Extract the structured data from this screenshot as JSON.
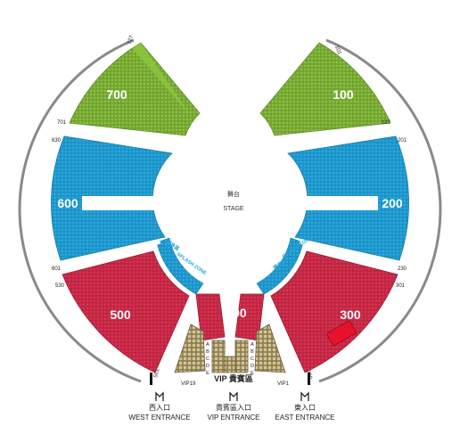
{
  "stage": {
    "zh": "舞台",
    "en": "STAGE"
  },
  "colors": {
    "green": "#7cae3a",
    "green_light": "#8dc63f",
    "blue": "#1e9fd6",
    "red": "#d42b49",
    "tan": "#c8b88a",
    "tan_dark": "#7a6a44",
    "arc": "#8a8a8a"
  },
  "sections": {
    "s700": "700",
    "s100": "100",
    "s600": "600",
    "s200": "200",
    "s500": "500",
    "s300": "300",
    "s400": "400"
  },
  "seat_numbers": {
    "n727": "727",
    "n101": "101",
    "n701": "701",
    "n127": "127",
    "n630": "630",
    "n201": "201",
    "n601": "601",
    "n230": "230",
    "n530": "530",
    "n301": "301",
    "n501": "501",
    "n330": "330"
  },
  "splash_zone": {
    "zh": "濺身區",
    "en": "SPLASH ZONE"
  },
  "vip": {
    "label": "VIP 貴賓區",
    "left": "VIP19",
    "right": "VIP1",
    "rows": [
      "A",
      "B",
      "C",
      "D",
      "E"
    ]
  },
  "entrances": {
    "west_zh": "西入口",
    "west_en": "WEST ENTRANCE",
    "vip_zh": "貴賓區入口",
    "vip_en": "VIP ENTRANCE",
    "east_zh": "東入口",
    "east_en": "EAST ENTRANCE"
  }
}
